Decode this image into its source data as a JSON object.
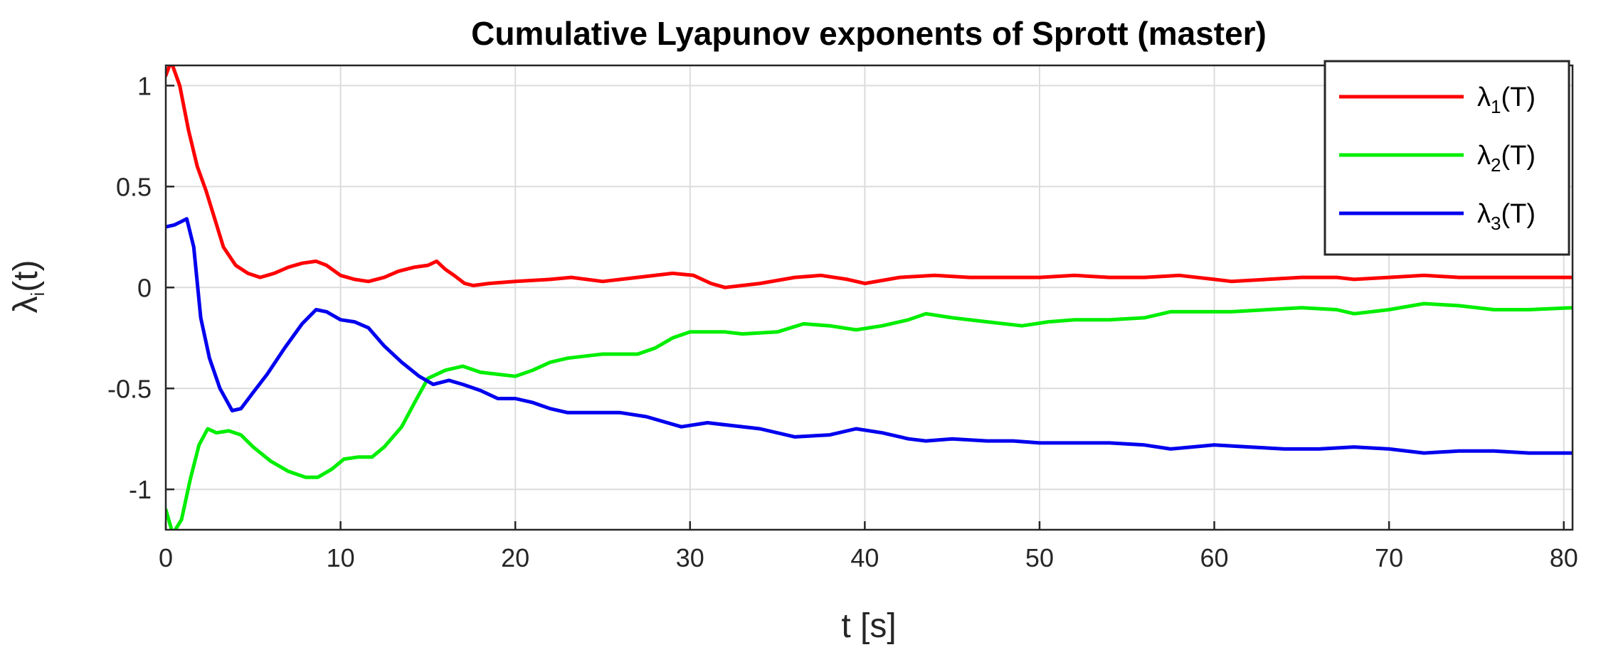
{
  "chart_data": {
    "type": "line",
    "title": "Cumulative Lyapunov exponents of Sprott (master)",
    "xlabel": "t [s]",
    "ylabel": {
      "symbol": "λ",
      "sub": "i",
      "suffix": "(t)"
    },
    "xlim": [
      0,
      80.5
    ],
    "ylim": [
      -1.2,
      1.1
    ],
    "xticks": [
      0,
      10,
      20,
      30,
      40,
      50,
      60,
      70,
      80
    ],
    "yticks": [
      1,
      0.5,
      0,
      -0.5,
      -1
    ],
    "ytick_labels": [
      "1",
      "0.5",
      "0",
      "-0.5",
      "-1"
    ],
    "grid": true,
    "legend_position": "top-right",
    "series": [
      {
        "name": "λ1(T)",
        "legend": {
          "symbol": "λ",
          "sub": "1",
          "suffix": "(T)"
        },
        "color": "#ff0000",
        "points": [
          [
            0,
            1.05
          ],
          [
            0.3,
            1.12
          ],
          [
            0.8,
            1.0
          ],
          [
            1.3,
            0.78
          ],
          [
            1.8,
            0.6
          ],
          [
            2.3,
            0.48
          ],
          [
            2.8,
            0.34
          ],
          [
            3.3,
            0.2
          ],
          [
            4,
            0.11
          ],
          [
            4.7,
            0.07
          ],
          [
            5.4,
            0.05
          ],
          [
            6.2,
            0.07
          ],
          [
            7,
            0.1
          ],
          [
            7.8,
            0.12
          ],
          [
            8.6,
            0.13
          ],
          [
            9.2,
            0.11
          ],
          [
            10,
            0.06
          ],
          [
            10.8,
            0.04
          ],
          [
            11.6,
            0.03
          ],
          [
            12.5,
            0.05
          ],
          [
            13.3,
            0.08
          ],
          [
            14.2,
            0.1
          ],
          [
            15,
            0.11
          ],
          [
            15.5,
            0.13
          ],
          [
            16,
            0.09
          ],
          [
            16.5,
            0.06
          ],
          [
            17.1,
            0.02
          ],
          [
            17.6,
            0.01
          ],
          [
            18.5,
            0.02
          ],
          [
            20,
            0.03
          ],
          [
            22,
            0.04
          ],
          [
            23.2,
            0.05
          ],
          [
            25,
            0.03
          ],
          [
            27,
            0.05
          ],
          [
            29,
            0.07
          ],
          [
            30.2,
            0.06
          ],
          [
            31.2,
            0.02
          ],
          [
            32,
            0.0
          ],
          [
            34,
            0.02
          ],
          [
            36,
            0.05
          ],
          [
            37.5,
            0.06
          ],
          [
            39,
            0.04
          ],
          [
            40,
            0.02
          ],
          [
            42,
            0.05
          ],
          [
            44,
            0.06
          ],
          [
            46,
            0.05
          ],
          [
            48,
            0.05
          ],
          [
            50,
            0.05
          ],
          [
            52,
            0.06
          ],
          [
            54,
            0.05
          ],
          [
            56,
            0.05
          ],
          [
            58,
            0.06
          ],
          [
            60,
            0.04
          ],
          [
            61,
            0.03
          ],
          [
            63,
            0.04
          ],
          [
            65,
            0.05
          ],
          [
            67,
            0.05
          ],
          [
            68,
            0.04
          ],
          [
            70,
            0.05
          ],
          [
            72,
            0.06
          ],
          [
            74,
            0.05
          ],
          [
            76,
            0.05
          ],
          [
            78,
            0.05
          ],
          [
            80.5,
            0.05
          ]
        ]
      },
      {
        "name": "λ2(T)",
        "legend": {
          "symbol": "λ",
          "sub": "2",
          "suffix": "(T)"
        },
        "color": "#00ee00",
        "points": [
          [
            0,
            -1.1
          ],
          [
            0.4,
            -1.22
          ],
          [
            0.9,
            -1.15
          ],
          [
            1.4,
            -0.95
          ],
          [
            1.9,
            -0.78
          ],
          [
            2.4,
            -0.7
          ],
          [
            2.9,
            -0.72
          ],
          [
            3.6,
            -0.71
          ],
          [
            4.3,
            -0.73
          ],
          [
            5,
            -0.79
          ],
          [
            6,
            -0.86
          ],
          [
            7,
            -0.91
          ],
          [
            8,
            -0.94
          ],
          [
            8.7,
            -0.94
          ],
          [
            9.5,
            -0.9
          ],
          [
            10.2,
            -0.85
          ],
          [
            11,
            -0.84
          ],
          [
            11.8,
            -0.84
          ],
          [
            12.5,
            -0.79
          ],
          [
            13.5,
            -0.69
          ],
          [
            14.3,
            -0.56
          ],
          [
            15,
            -0.45
          ],
          [
            16,
            -0.41
          ],
          [
            17,
            -0.39
          ],
          [
            18,
            -0.42
          ],
          [
            19,
            -0.43
          ],
          [
            20,
            -0.44
          ],
          [
            21,
            -0.41
          ],
          [
            22,
            -0.37
          ],
          [
            23,
            -0.35
          ],
          [
            24,
            -0.34
          ],
          [
            25,
            -0.33
          ],
          [
            27,
            -0.33
          ],
          [
            28,
            -0.3
          ],
          [
            29,
            -0.25
          ],
          [
            30,
            -0.22
          ],
          [
            31,
            -0.22
          ],
          [
            32,
            -0.22
          ],
          [
            33,
            -0.23
          ],
          [
            35,
            -0.22
          ],
          [
            36.5,
            -0.18
          ],
          [
            38,
            -0.19
          ],
          [
            39.5,
            -0.21
          ],
          [
            41,
            -0.19
          ],
          [
            42.5,
            -0.16
          ],
          [
            43.5,
            -0.13
          ],
          [
            45,
            -0.15
          ],
          [
            47,
            -0.17
          ],
          [
            49,
            -0.19
          ],
          [
            50.5,
            -0.17
          ],
          [
            52,
            -0.16
          ],
          [
            54,
            -0.16
          ],
          [
            56,
            -0.15
          ],
          [
            57.5,
            -0.12
          ],
          [
            59,
            -0.12
          ],
          [
            61,
            -0.12
          ],
          [
            63,
            -0.11
          ],
          [
            65,
            -0.1
          ],
          [
            67,
            -0.11
          ],
          [
            68,
            -0.13
          ],
          [
            70,
            -0.11
          ],
          [
            72,
            -0.08
          ],
          [
            74,
            -0.09
          ],
          [
            76,
            -0.11
          ],
          [
            78,
            -0.11
          ],
          [
            80.5,
            -0.1
          ]
        ]
      },
      {
        "name": "λ3(T)",
        "legend": {
          "symbol": "λ",
          "sub": "3",
          "suffix": "(T)"
        },
        "color": "#0000ee",
        "points": [
          [
            0,
            0.3
          ],
          [
            0.5,
            0.31
          ],
          [
            1.2,
            0.34
          ],
          [
            1.6,
            0.2
          ],
          [
            2,
            -0.15
          ],
          [
            2.5,
            -0.35
          ],
          [
            3.1,
            -0.5
          ],
          [
            3.8,
            -0.61
          ],
          [
            4.3,
            -0.6
          ],
          [
            5,
            -0.52
          ],
          [
            5.8,
            -0.43
          ],
          [
            6.8,
            -0.3
          ],
          [
            7.8,
            -0.18
          ],
          [
            8.6,
            -0.11
          ],
          [
            9.2,
            -0.12
          ],
          [
            10,
            -0.16
          ],
          [
            10.8,
            -0.17
          ],
          [
            11.6,
            -0.2
          ],
          [
            12.5,
            -0.29
          ],
          [
            13.5,
            -0.37
          ],
          [
            14.5,
            -0.44
          ],
          [
            15.3,
            -0.48
          ],
          [
            16.2,
            -0.46
          ],
          [
            17,
            -0.48
          ],
          [
            18,
            -0.51
          ],
          [
            19,
            -0.55
          ],
          [
            20,
            -0.55
          ],
          [
            21,
            -0.57
          ],
          [
            22,
            -0.6
          ],
          [
            23,
            -0.62
          ],
          [
            24,
            -0.62
          ],
          [
            26,
            -0.62
          ],
          [
            27.5,
            -0.64
          ],
          [
            29.5,
            -0.69
          ],
          [
            31,
            -0.67
          ],
          [
            32,
            -0.68
          ],
          [
            34,
            -0.7
          ],
          [
            36,
            -0.74
          ],
          [
            38,
            -0.73
          ],
          [
            39.5,
            -0.7
          ],
          [
            41,
            -0.72
          ],
          [
            42.5,
            -0.75
          ],
          [
            43.5,
            -0.76
          ],
          [
            45,
            -0.75
          ],
          [
            47,
            -0.76
          ],
          [
            48.5,
            -0.76
          ],
          [
            50,
            -0.77
          ],
          [
            52,
            -0.77
          ],
          [
            54,
            -0.77
          ],
          [
            56,
            -0.78
          ],
          [
            57.5,
            -0.8
          ],
          [
            60,
            -0.78
          ],
          [
            62,
            -0.79
          ],
          [
            64,
            -0.8
          ],
          [
            66,
            -0.8
          ],
          [
            68,
            -0.79
          ],
          [
            70,
            -0.8
          ],
          [
            72,
            -0.82
          ],
          [
            74,
            -0.81
          ],
          [
            76,
            -0.81
          ],
          [
            78,
            -0.82
          ],
          [
            80.5,
            -0.82
          ]
        ]
      }
    ]
  }
}
